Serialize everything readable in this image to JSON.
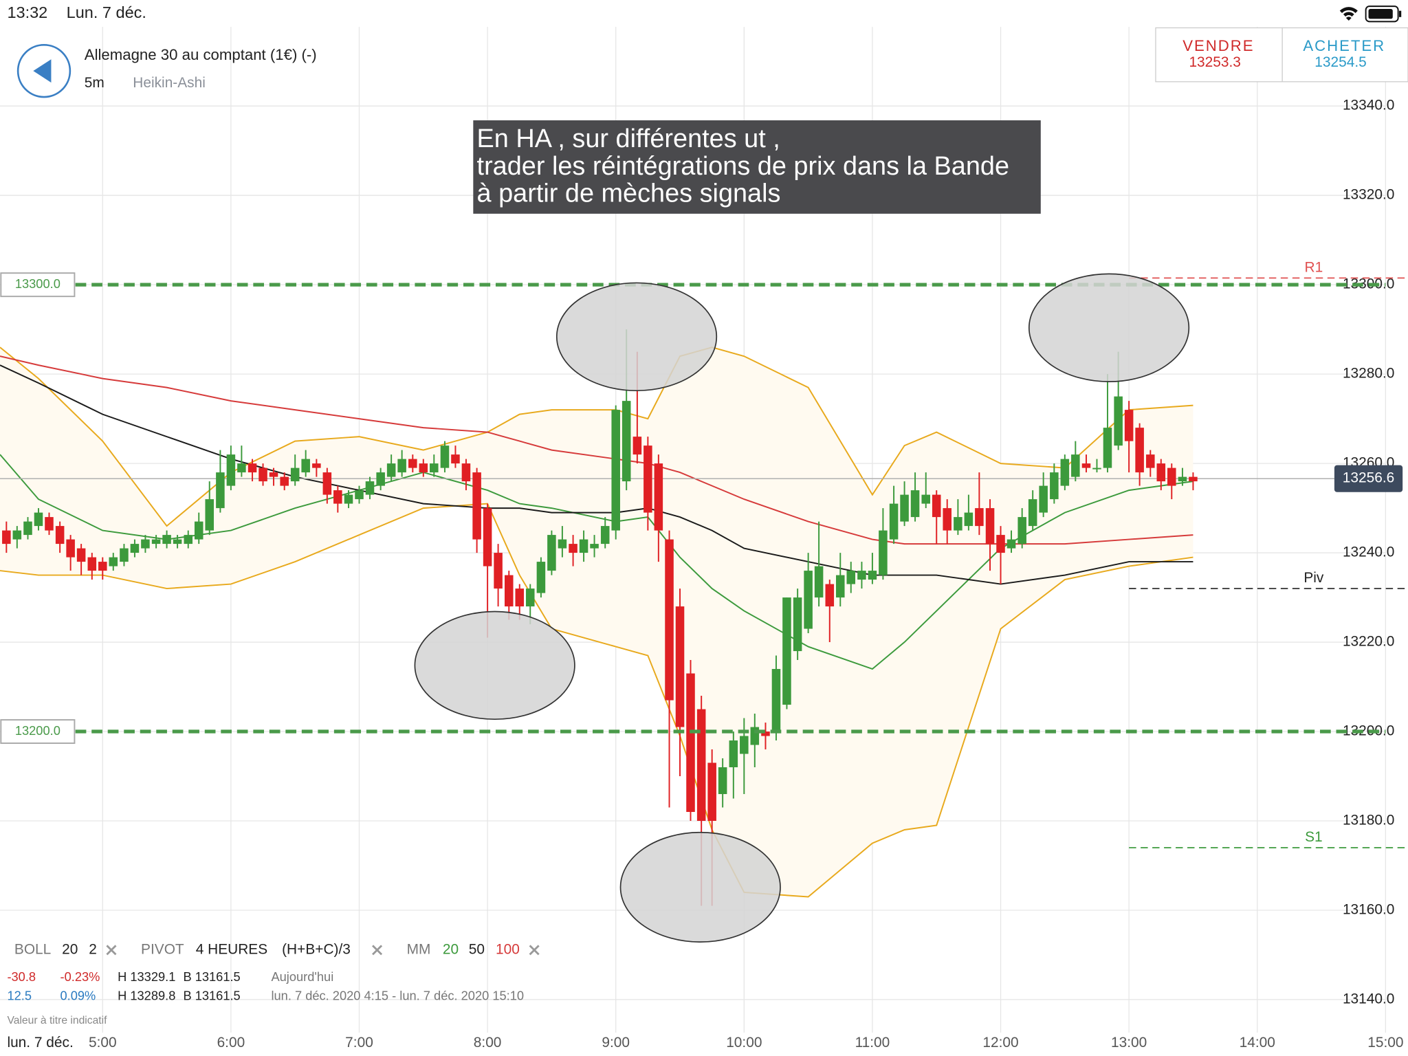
{
  "status_bar": {
    "time": "13:32",
    "date": "Lun. 7 déc."
  },
  "header": {
    "instrument": "Allemagne 30 au comptant (1€) (-)",
    "timeframe": "5m",
    "chart_style": "Heikin-Ashi"
  },
  "trade": {
    "sell_label": "VENDRE",
    "sell_price": "13253.3",
    "buy_label": "ACHETER",
    "buy_price": "13254.5"
  },
  "annotation": {
    "lines": [
      "En HA , sur différentes ut ,",
      "trader les réintégrations de prix dans la Bande",
      "à partir de mèches signals"
    ]
  },
  "legend": {
    "boll": [
      "BOLL",
      "20",
      "2"
    ],
    "pivot": [
      "PIVOT",
      "4 HEURES",
      "(H+B+C)/3"
    ],
    "mm": [
      "MM",
      "20",
      "50",
      "100"
    ]
  },
  "stats": {
    "rows": [
      [
        "-30.8",
        "-0.23%",
        "H 13329.1",
        "B 13161.5",
        "Aujourd'hui"
      ],
      [
        "12.5",
        "0.09%",
        "H 13289.8",
        "B 13161.5",
        "lun. 7 déc. 2020 4:15 - lun. 7 déc. 2020 15:10"
      ]
    ],
    "note": "Valeur à titre indicatif"
  },
  "chart_data": {
    "type": "candlestick",
    "xlabel": "lun. 7 déc.",
    "xlim": [
      4.2,
      15
    ],
    "ylim": [
      13132.6,
      13357.7
    ],
    "xticks": [
      {
        "value": 5,
        "label": "5:00"
      },
      {
        "value": 6,
        "label": "6:00"
      },
      {
        "value": 7,
        "label": "7:00"
      },
      {
        "value": 8,
        "label": "8:00"
      },
      {
        "value": 9,
        "label": "9:00"
      },
      {
        "value": 10,
        "label": "10:00"
      },
      {
        "value": 11,
        "label": "11:00"
      },
      {
        "value": 12,
        "label": "12:00"
      },
      {
        "value": 13,
        "label": "13:00"
      },
      {
        "value": 14,
        "label": "14:00"
      },
      {
        "value": 15,
        "label": "15:00"
      }
    ],
    "yticks": [
      {
        "value": 13140,
        "label": "13140.0"
      },
      {
        "value": 13160,
        "label": "13160.0"
      },
      {
        "value": 13180,
        "label": "13180.0"
      },
      {
        "value": 13200,
        "label": "13200.0"
      },
      {
        "value": 13220,
        "label": "13220.0"
      },
      {
        "value": 13240,
        "label": "13240.0"
      },
      {
        "value": 13260,
        "label": "13260.0"
      },
      {
        "value": 13280,
        "label": "13280.0"
      },
      {
        "value": 13300,
        "label": "13300.0"
      },
      {
        "value": 13320,
        "label": "13320.0"
      },
      {
        "value": 13340,
        "label": "13340.0"
      }
    ],
    "grid": true,
    "up_color": "#3c9a3c",
    "down_color": "#e02024",
    "x": [
      4.25,
      4.333,
      4.417,
      4.5,
      4.583,
      4.667,
      4.75,
      4.833,
      4.917,
      5,
      5.083,
      5.167,
      5.25,
      5.333,
      5.417,
      5.5,
      5.583,
      5.667,
      5.75,
      5.833,
      5.917,
      6,
      6.083,
      6.167,
      6.25,
      6.333,
      6.417,
      6.5,
      6.583,
      6.667,
      6.75,
      6.833,
      6.917,
      7,
      7.083,
      7.167,
      7.25,
      7.333,
      7.417,
      7.5,
      7.583,
      7.667,
      7.75,
      7.833,
      7.917,
      8,
      8.083,
      8.167,
      8.25,
      8.333,
      8.417,
      8.5,
      8.583,
      8.667,
      8.75,
      8.833,
      8.917,
      9,
      9.083,
      9.167,
      9.25,
      9.333,
      9.417,
      9.5,
      9.583,
      9.667,
      9.75,
      9.833,
      9.917,
      10,
      10.083,
      10.167,
      10.25,
      10.333,
      10.417,
      10.5,
      10.583,
      10.667,
      10.75,
      10.833,
      10.917,
      11,
      11.083,
      11.167,
      11.25,
      11.333,
      11.417,
      11.5,
      11.583,
      11.667,
      11.75,
      11.833,
      11.917,
      12,
      12.083,
      12.167,
      12.25,
      12.333,
      12.417,
      12.5,
      12.583,
      12.667,
      12.75,
      12.833,
      12.917,
      13,
      13.083,
      13.167,
      13.25,
      13.333,
      13.417,
      13.5
    ],
    "candles": [
      [
        13245,
        13247,
        13240,
        13242
      ],
      [
        13243,
        13246,
        13241,
        13245
      ],
      [
        13244,
        13248,
        13243,
        13247
      ],
      [
        13246,
        13250,
        13245,
        13249
      ],
      [
        13248,
        13249,
        13244,
        13245
      ],
      [
        13246,
        13247,
        13240,
        13242
      ],
      [
        13243,
        13244,
        13236,
        13239
      ],
      [
        13241,
        13242,
        13235,
        13238
      ],
      [
        13239,
        13240,
        13234,
        13236
      ],
      [
        13238,
        13239,
        13234,
        13236
      ],
      [
        13237,
        13240,
        13236,
        13239
      ],
      [
        13238,
        13242,
        13237,
        13241
      ],
      [
        13240,
        13243,
        13239,
        13242
      ],
      [
        13241,
        13244,
        13240,
        13243
      ],
      [
        13242,
        13244,
        13241,
        13243
      ],
      [
        13242,
        13245,
        13241,
        13244
      ],
      [
        13242,
        13244,
        13241,
        13243
      ],
      [
        13242,
        13245,
        13241,
        13244
      ],
      [
        13243,
        13249,
        13242,
        13247
      ],
      [
        13245,
        13256,
        13244,
        13252
      ],
      [
        13250,
        13263,
        13249,
        13258
      ],
      [
        13255,
        13264,
        13254,
        13262
      ],
      [
        13258,
        13264,
        13257,
        13260
      ],
      [
        13260,
        13261,
        13256,
        13258
      ],
      [
        13259,
        13260,
        13255,
        13256
      ],
      [
        13258,
        13259,
        13255,
        13257
      ],
      [
        13257,
        13258,
        13254,
        13255
      ],
      [
        13256,
        13262,
        13255,
        13259
      ],
      [
        13258,
        13263,
        13257,
        13261
      ],
      [
        13260,
        13261,
        13257,
        13259
      ],
      [
        13258,
        13259,
        13251,
        13253
      ],
      [
        13254,
        13255,
        13249,
        13251
      ],
      [
        13251,
        13254,
        13250,
        13253
      ],
      [
        13252,
        13255,
        13251,
        13254
      ],
      [
        13253,
        13257,
        13252,
        13256
      ],
      [
        13255,
        13259,
        13254,
        13258
      ],
      [
        13257,
        13262,
        13256,
        13260
      ],
      [
        13258,
        13263,
        13257,
        13261
      ],
      [
        13261,
        13262,
        13258,
        13259
      ],
      [
        13260,
        13261,
        13257,
        13258
      ],
      [
        13258,
        13262,
        13257,
        13260
      ],
      [
        13259,
        13265,
        13258,
        13264
      ],
      [
        13262,
        13264,
        13259,
        13260
      ],
      [
        13260,
        13261,
        13254,
        13256
      ],
      [
        13258,
        13259,
        13240,
        13243
      ],
      [
        13250,
        13251,
        13221,
        13237
      ],
      [
        13240,
        13242,
        13228,
        13232
      ],
      [
        13235,
        13236,
        13225,
        13228
      ],
      [
        13232,
        13233,
        13225,
        13228
      ],
      [
        13228,
        13233,
        13224,
        13232
      ],
      [
        13231,
        13239,
        13230,
        13238
      ],
      [
        13236,
        13245,
        13235,
        13244
      ],
      [
        13241,
        13246,
        13239,
        13243
      ],
      [
        13242,
        13244,
        13237,
        13240
      ],
      [
        13240,
        13245,
        13238,
        13243
      ],
      [
        13241,
        13244,
        13239,
        13242
      ],
      [
        13242,
        13248,
        13241,
        13246
      ],
      [
        13245,
        13273,
        13243,
        13272
      ],
      [
        13256,
        13290,
        13254,
        13274
      ],
      [
        13266,
        13285,
        13260,
        13262
      ],
      [
        13264,
        13266,
        13245,
        13249
      ],
      [
        13260,
        13262,
        13238,
        13245
      ],
      [
        13243,
        13245,
        13183,
        13207
      ],
      [
        13228,
        13232,
        13190,
        13201
      ],
      [
        13213,
        13216,
        13180,
        13182
      ],
      [
        13205,
        13208,
        13161,
        13180
      ],
      [
        13193,
        13196,
        13161,
        13180
      ],
      [
        13186,
        13194,
        13183,
        13192
      ],
      [
        13192,
        13200,
        13185,
        13198
      ],
      [
        13195,
        13203,
        13186,
        13199
      ],
      [
        13197,
        13204,
        13192,
        13201
      ],
      [
        13200,
        13202,
        13196,
        13199
      ],
      [
        13200,
        13217,
        13198,
        13214
      ],
      [
        13206,
        13230,
        13205,
        13230
      ],
      [
        13218,
        13232,
        13216,
        13230
      ],
      [
        13223,
        13240,
        13222,
        13236
      ],
      [
        13230,
        13247,
        13228,
        13237
      ],
      [
        13233,
        13234,
        13220,
        13228
      ],
      [
        13230,
        13240,
        13228,
        13235
      ],
      [
        13233,
        13238,
        13231,
        13236
      ],
      [
        13234,
        13238,
        13232,
        13236
      ],
      [
        13234,
        13240,
        13233,
        13236
      ],
      [
        13235,
        13250,
        13234,
        13245
      ],
      [
        13243,
        13255,
        13242,
        13251
      ],
      [
        13247,
        13256,
        13246,
        13253
      ],
      [
        13248,
        13258,
        13247,
        13254
      ],
      [
        13251,
        13258,
        13250,
        13253
      ],
      [
        13253,
        13254,
        13242,
        13248
      ],
      [
        13250,
        13252,
        13242,
        13245
      ],
      [
        13245,
        13252,
        13244,
        13248
      ],
      [
        13246,
        13253,
        13245,
        13249
      ],
      [
        13250,
        13258,
        13244,
        13246
      ],
      [
        13250,
        13252,
        13236,
        13242
      ],
      [
        13244,
        13246,
        13233,
        13240
      ],
      [
        13241,
        13245,
        13240,
        13243
      ],
      [
        13242,
        13250,
        13241,
        13248
      ],
      [
        13246,
        13254,
        13245,
        13252
      ],
      [
        13249,
        13258,
        13248,
        13255
      ],
      [
        13252,
        13260,
        13251,
        13258
      ],
      [
        13255,
        13262,
        13254,
        13261
      ],
      [
        13257,
        13265,
        13256,
        13262
      ],
      [
        13260,
        13262,
        13258,
        13259
      ],
      [
        13259,
        13261,
        13258,
        13259
      ],
      [
        13259,
        13280,
        13258,
        13268
      ],
      [
        13264,
        13285,
        13263,
        13275
      ],
      [
        13272,
        13274,
        13258,
        13265
      ],
      [
        13268,
        13269,
        13255,
        13258
      ],
      [
        13262,
        13263,
        13257,
        13259
      ],
      [
        13260,
        13261,
        13254,
        13256
      ],
      [
        13259,
        13260,
        13252,
        13255
      ],
      [
        13256,
        13259,
        13255,
        13257
      ],
      [
        13257,
        13258,
        13254,
        13256
      ]
    ],
    "overlays": {
      "x": [
        4.2,
        4.5,
        5,
        5.5,
        6,
        6.5,
        7,
        7.5,
        8,
        8.25,
        8.5,
        9,
        9.25,
        9.5,
        9.75,
        10,
        10.5,
        11,
        11.25,
        11.5,
        12,
        12.5,
        13,
        13.5
      ],
      "band": {
        "color": "#e8a91c",
        "fill": "#fffaf0",
        "upper": [
          13286,
          13279,
          13265,
          13246,
          13258,
          13265,
          13266,
          13263,
          13267,
          13271,
          13272,
          13272,
          13270,
          13284,
          13286,
          13284,
          13277,
          13253,
          13264,
          13267,
          13260,
          13259,
          13272,
          13273
        ],
        "lower": [
          13236,
          13235,
          13235,
          13232,
          13233,
          13238,
          13244,
          13250,
          13251,
          13235,
          13223,
          13219,
          13217,
          13199,
          13178,
          13164,
          13163,
          13175,
          13178,
          13179,
          13223,
          13234,
          13237,
          13239
        ]
      },
      "series": [
        {
          "color": "#3c9a3c",
          "values": [
            13262,
            13252,
            13245,
            13243,
            13245,
            13250,
            13254,
            13258,
            13254,
            13251,
            13250,
            13247,
            13248,
            13239,
            13232,
            13227,
            13219,
            13214,
            13220,
            13227,
            13241,
            13249,
            13254,
            13256
          ]
        },
        {
          "color": "#1a1a1a",
          "values": [
            13282,
            13278,
            13271,
            13266,
            13261,
            13257,
            13254,
            13251,
            13250,
            13250,
            13249,
            13249,
            13250,
            13248,
            13245,
            13241,
            13238,
            13235,
            13235,
            13235,
            13233,
            13235,
            13238,
            13238
          ]
        },
        {
          "color": "#d63a3a",
          "values": [
            13284,
            13282,
            13279,
            13277,
            13274,
            13272,
            13270,
            13268,
            13267,
            13265,
            13263,
            13261,
            13260,
            13258,
            13255,
            13252,
            13247,
            13243,
            13242,
            13242,
            13242,
            13242,
            13243,
            13244
          ]
        }
      ]
    },
    "levels": {
      "color": "#4a9a4a",
      "items": [
        {
          "value": 13300,
          "label": "13300.0"
        },
        {
          "value": 13200,
          "label": "13200.0"
        }
      ]
    },
    "pivots": {
      "from": 13,
      "items": [
        {
          "name": "R1",
          "value": 13301.5,
          "color": "#e05050"
        },
        {
          "name": "Piv",
          "value": 13232,
          "color": "#222222"
        },
        {
          "name": "S1",
          "value": 13174,
          "color": "#3c9a3c"
        }
      ]
    },
    "last_price": {
      "value": 13256.6,
      "label": "13256.6"
    }
  }
}
